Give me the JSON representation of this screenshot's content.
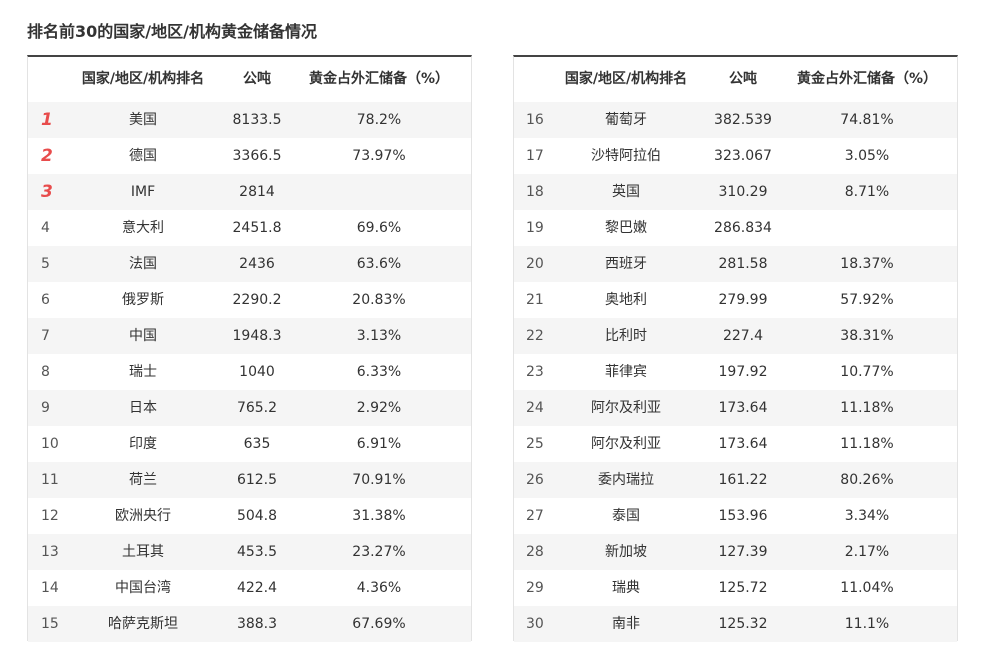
{
  "title": "排名前30的国家/地区/机构黄金储备情况",
  "tables": [
    {
      "header": [
        "国家/地区/机构排名",
        "公吨",
        "黄金占外汇储备（%）"
      ],
      "rows": [
        [
          "1",
          "美国",
          "8133.5",
          "78.2%"
        ],
        [
          "2",
          "德国",
          "3366.5",
          "73.97%"
        ],
        [
          "3",
          "IMF",
          "2814",
          null
        ],
        [
          "4",
          "意大利",
          "2451.8",
          "69.6%"
        ],
        [
          "5",
          "法国",
          "2436",
          "63.6%"
        ],
        [
          "6",
          "俄罗斯",
          "2290.2",
          "20.83%"
        ],
        [
          "7",
          "中国",
          "1948.3",
          "3.13%"
        ],
        [
          "8",
          "瑞士",
          "1040",
          "6.33%"
        ],
        [
          "9",
          "日本",
          "765.2",
          "2.92%"
        ],
        [
          "10",
          "印度",
          "635",
          "6.91%"
        ],
        [
          "11",
          "荷兰",
          "612.5",
          "70.91%"
        ],
        [
          "12",
          "欧洲央行",
          "504.8",
          "31.38%"
        ],
        [
          "13",
          "土耳其",
          "453.5",
          "23.27%"
        ],
        [
          "14",
          "中国台湾",
          "422.4",
          "4.36%"
        ],
        [
          "15",
          "哈萨克斯坦",
          "388.3",
          "67.69%"
        ]
      ]
    },
    {
      "header": [
        "国家/地区/机构排名",
        "公吨",
        "黄金占外汇储备（%）"
      ],
      "rows": [
        [
          "16",
          "葡萄牙",
          "382.539",
          "74.81%"
        ],
        [
          "17",
          "沙特阿拉伯",
          "323.067",
          "3.05%"
        ],
        [
          "18",
          "英国",
          "310.29",
          "8.71%"
        ],
        [
          "19",
          "黎巴嫩",
          "286.834",
          null
        ],
        [
          "20",
          "西班牙",
          "281.58",
          "18.37%"
        ],
        [
          "21",
          "奥地利",
          "279.99",
          "57.92%"
        ],
        [
          "22",
          "比利时",
          "227.4",
          "38.31%"
        ],
        [
          "23",
          "菲律宾",
          "197.92",
          "10.77%"
        ],
        [
          "24",
          "阿尔及利亚",
          "173.64",
          "11.18%"
        ],
        [
          "25",
          "阿尔及利亚",
          "173.64",
          "11.18%"
        ],
        [
          "26",
          "委内瑞拉",
          "161.22",
          "80.26%"
        ],
        [
          "27",
          "泰国",
          "153.96",
          "3.34%"
        ],
        [
          "28",
          "新加坡",
          "127.39",
          "2.17%"
        ],
        [
          "29",
          "瑞典",
          "125.72",
          "11.04%"
        ],
        [
          "30",
          "南非",
          "125.32",
          "11.1%"
        ]
      ]
    }
  ]
}
